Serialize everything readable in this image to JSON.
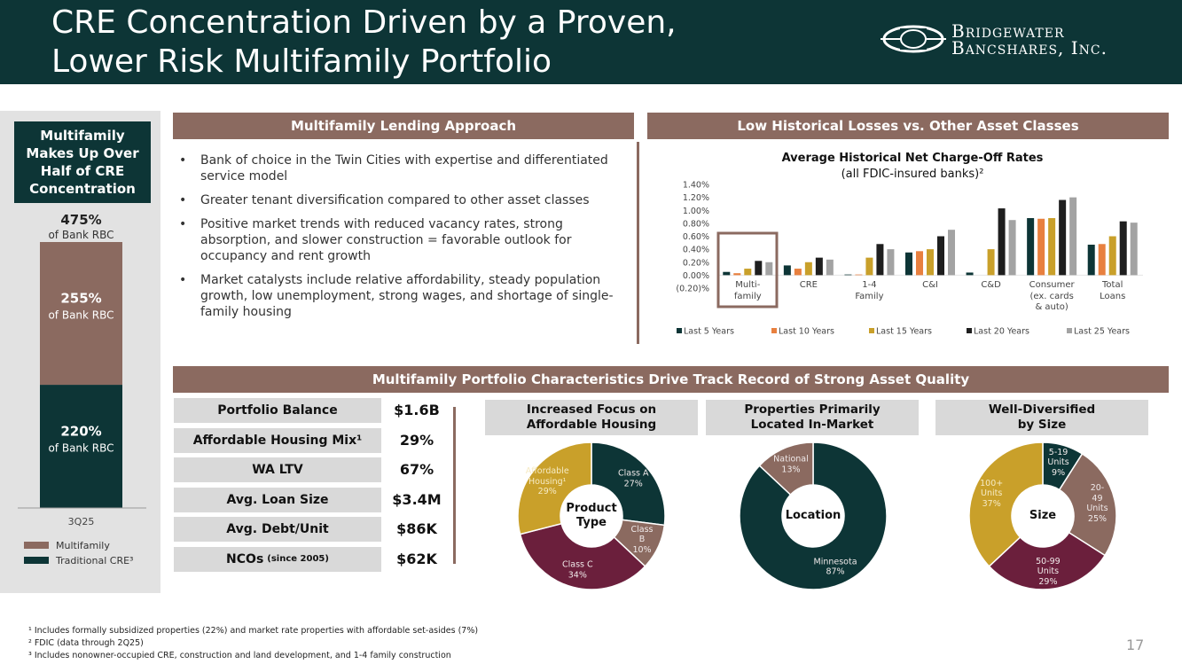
{
  "header": {
    "title": "CRE Concentration Driven by a Proven,\nLower Risk Multifamily Portfolio",
    "logo": "Bridgewater\nBancshares, Inc."
  },
  "left_panel": {
    "title": "Multifamily Makes Up Over Half of CRE Concentration"
  },
  "sections": {
    "approach": "Multifamily Lending Approach",
    "losses": "Low Historical Losses vs. Other Asset Classes",
    "portfolio": "Multifamily Portfolio Characteristics Drive Track Record of Strong Asset Quality"
  },
  "bullets": [
    "Bank of choice in the Twin Cities with expertise and differentiated service model",
    "Greater tenant diversification compared to other asset classes",
    "Positive market trends with reduced vacancy rates, strong absorption, and slower construction = favorable outlook for occupancy and rent growth",
    "Market catalysts include relative affordability, steady population growth, low unemployment, strong wages, and shortage of single-family housing"
  ],
  "portfolio_table": [
    {
      "label": "Portfolio Balance",
      "value": "$1.6B"
    },
    {
      "label": "Affordable Housing Mix¹",
      "value": "29%"
    },
    {
      "label": "WA LTV",
      "value": "67%"
    },
    {
      "label": "Avg. Loan Size",
      "value": "$3.4M"
    },
    {
      "label": "Avg. Debt/Unit",
      "value": "$86K"
    },
    {
      "label": "NCOs",
      "note": "(since 2005)",
      "value": "$62K"
    }
  ],
  "footnotes": [
    "¹ Includes formally subsidized properties (22%) and market rate properties with affordable set-asides (7%)",
    "² FDIC (data through 2Q25)",
    "³ Includes nonowner-occupied CRE, construction and land development, and 1-4 family construction"
  ],
  "page_number": "17",
  "chart_data": [
    {
      "type": "stacked_bar",
      "categories": [
        "3Q25"
      ],
      "series": [
        {
          "name": "Traditional CRE³",
          "color": "#0d3536",
          "values": [
            220
          ],
          "value_labels": [
            "220%"
          ]
        },
        {
          "name": "Multifamily",
          "color": "#8b6a60",
          "values": [
            255
          ],
          "value_labels": [
            "255%"
          ]
        }
      ],
      "total_labels": [
        "475%"
      ],
      "value_sublabel": "of Bank RBC"
    },
    {
      "type": "bar",
      "title": "Average Historical Net Charge-Off Rates",
      "subtitle": "(all FDIC-insured banks)²",
      "categories": [
        "Multi-\nfamily",
        "CRE",
        "1-4\nFamily",
        "C&I",
        "C&D",
        "Consumer\n(ex. cards\n& auto)",
        "Total\nLoans"
      ],
      "series": [
        {
          "name": "Last 5 Years",
          "color": "#0d3536",
          "values": [
            0.05,
            0.15,
            0.01,
            0.35,
            0.04,
            0.88,
            0.47
          ]
        },
        {
          "name": "Last 10 Years",
          "color": "#e8803f",
          "values": [
            0.03,
            0.1,
            0.01,
            0.37,
            0.0,
            0.87,
            0.48
          ]
        },
        {
          "name": "Last 15 Years",
          "color": "#c9a02a",
          "values": [
            0.1,
            0.2,
            0.27,
            0.4,
            0.4,
            0.88,
            0.6
          ]
        },
        {
          "name": "Last 20 Years",
          "color": "#1e1e1e",
          "values": [
            0.22,
            0.27,
            0.48,
            0.6,
            1.03,
            1.16,
            0.83
          ]
        },
        {
          "name": "Last 25 Years",
          "color": "#a3a3a3",
          "values": [
            0.2,
            0.24,
            0.4,
            0.7,
            0.85,
            1.2,
            0.81
          ]
        }
      ],
      "ylim": [
        -0.2,
        1.4
      ],
      "yticks": [
        {
          "value": -0.2,
          "label": "(0.20)%"
        },
        {
          "value": 0,
          "label": "0.00%"
        },
        {
          "value": 0.2,
          "label": "0.20%"
        },
        {
          "value": 0.4,
          "label": "0.40%"
        },
        {
          "value": 0.6,
          "label": "0.60%"
        },
        {
          "value": 0.8,
          "label": "0.80%"
        },
        {
          "value": 1.0,
          "label": "1.00%"
        },
        {
          "value": 1.2,
          "label": "1.20%"
        },
        {
          "value": 1.4,
          "label": "1.40%"
        }
      ],
      "legend": "bottom",
      "grid": false
    },
    {
      "type": "pie",
      "title": "Increased Focus on\nAffordable Housing",
      "center_label": "Product\nType",
      "labels": [
        "Class A",
        "Class B",
        "Class C",
        "Affordable\nHousing¹"
      ],
      "values": [
        27,
        10,
        34,
        29
      ],
      "value_labels": [
        "27%",
        "10%",
        "34%",
        "29%"
      ],
      "colors": [
        "#0d3536",
        "#8b6a60",
        "#6b1f3c",
        "#c9a02a"
      ]
    },
    {
      "type": "pie",
      "title": "Properties Primarily\nLocated In-Market",
      "center_label": "Location",
      "labels": [
        "Minnesota",
        "National"
      ],
      "values": [
        87,
        13
      ],
      "value_labels": [
        "87%",
        "13%"
      ],
      "colors": [
        "#0d3536",
        "#8b6a60"
      ]
    },
    {
      "type": "pie",
      "title": "Well-Diversified\nby Size",
      "center_label": "Size",
      "labels": [
        "5-19\nUnits",
        "20-49\nUnits",
        "50-99\nUnits",
        "100+\nUnits"
      ],
      "values": [
        9,
        25,
        29,
        37
      ],
      "value_labels": [
        "9%",
        "25%",
        "29%",
        "37%"
      ],
      "colors": [
        "#0d3536",
        "#8b6a60",
        "#6b1f3c",
        "#c9a02a"
      ]
    }
  ]
}
